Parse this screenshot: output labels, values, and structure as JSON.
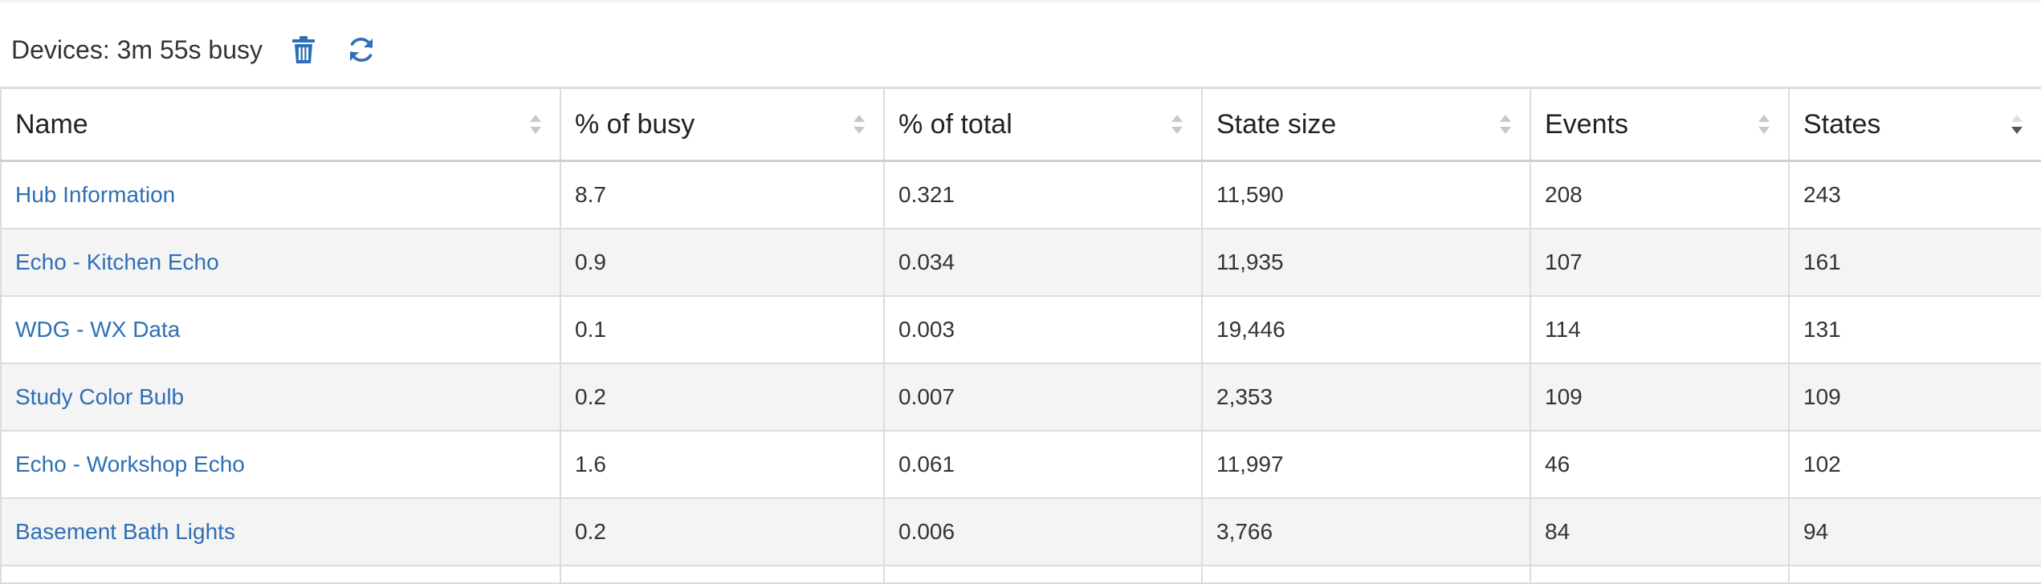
{
  "header": {
    "title": "Devices: 3m 55s busy",
    "trash_icon": "trash-icon",
    "refresh_icon": "refresh-icon"
  },
  "colors": {
    "accent": "#2f6fb5",
    "row_alt": "#f4f4f4",
    "border": "#dcdcdc"
  },
  "table": {
    "columns": [
      {
        "label": "Name",
        "sort": "none"
      },
      {
        "label": "% of busy",
        "sort": "none"
      },
      {
        "label": "% of total",
        "sort": "none"
      },
      {
        "label": "State size",
        "sort": "none"
      },
      {
        "label": "Events",
        "sort": "none"
      },
      {
        "label": "States",
        "sort": "descending"
      }
    ],
    "rows": [
      {
        "name": "Hub Information",
        "busy": "8.7",
        "total": "0.321",
        "state_size": "11,590",
        "events": "208",
        "states": "243"
      },
      {
        "name": "Echo - Kitchen Echo",
        "busy": "0.9",
        "total": "0.034",
        "state_size": "11,935",
        "events": "107",
        "states": "161"
      },
      {
        "name": "WDG - WX Data",
        "busy": "0.1",
        "total": "0.003",
        "state_size": "19,446",
        "events": "114",
        "states": "131"
      },
      {
        "name": "Study Color Bulb",
        "busy": "0.2",
        "total": "0.007",
        "state_size": "2,353",
        "events": "109",
        "states": "109"
      },
      {
        "name": "Echo - Workshop Echo",
        "busy": "1.6",
        "total": "0.061",
        "state_size": "11,997",
        "events": "46",
        "states": "102"
      },
      {
        "name": "Basement Bath Lights",
        "busy": "0.2",
        "total": "0.006",
        "state_size": "3,766",
        "events": "84",
        "states": "94"
      }
    ]
  }
}
